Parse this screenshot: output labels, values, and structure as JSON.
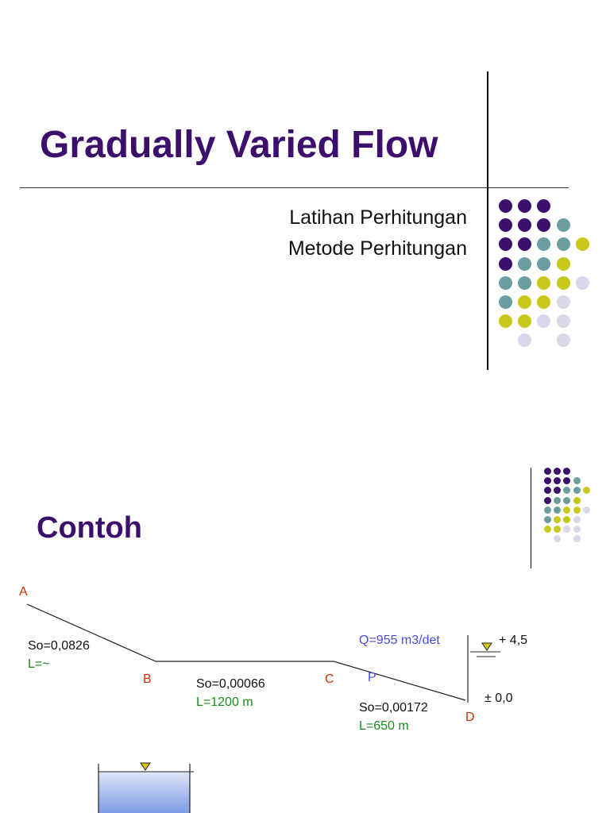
{
  "slide1": {
    "title": "Gradually Varied Flow",
    "subtitle_lines": [
      "Latihan Perhitungan",
      "Metode Perhitungan"
    ]
  },
  "slide2": {
    "heading": "Contoh",
    "points": {
      "a": "A",
      "b": "B",
      "c": "C",
      "p": "P",
      "d": "D"
    },
    "segment_ab": {
      "slope": "So=0,0826",
      "length": "L=~"
    },
    "segment_bc": {
      "slope": "So=0,00066",
      "length": "L=1200 m"
    },
    "segment_cd": {
      "slope": "So=0,00172",
      "length": "L=650 m"
    },
    "discharge": "Q=955 m3/det",
    "level_top": "+ 4,5",
    "level_bottom": "± 0,0"
  },
  "colors": {
    "purple": "#3b0f6b",
    "teal": "#6b9e9e",
    "yellow": "#c8c81a",
    "lavender": "#d8d8ea",
    "orange": "#cc3300",
    "green": "#1a8a1a",
    "blue": "#4a4ae0"
  }
}
